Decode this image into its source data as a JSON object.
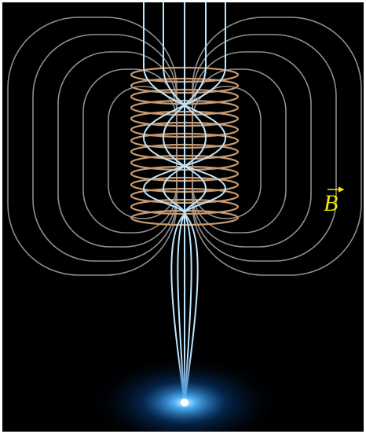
{
  "field_label": "B"
}
